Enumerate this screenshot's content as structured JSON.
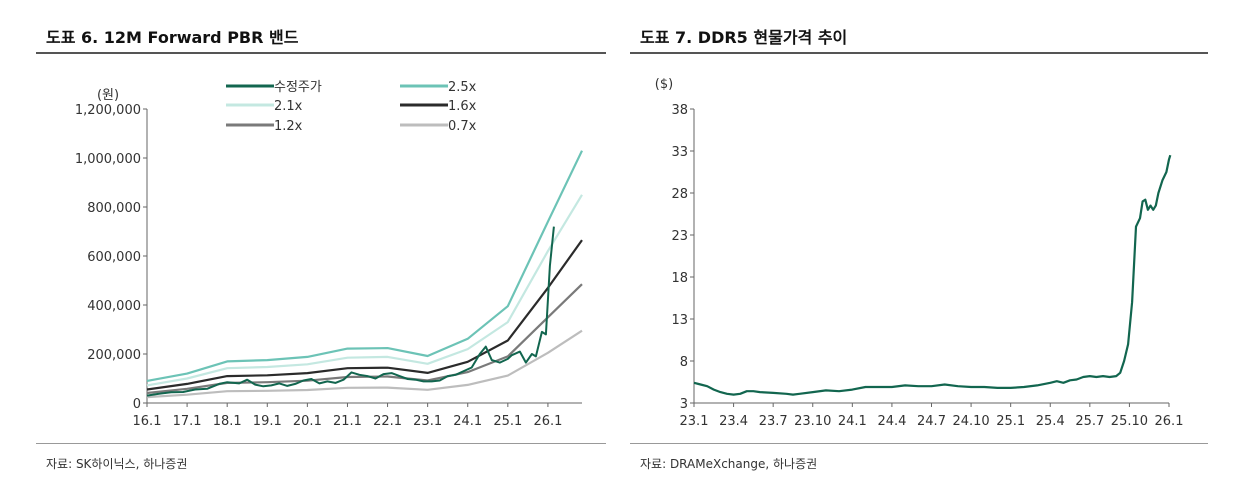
{
  "left": {
    "title": "도표 6. 12M Forward PBR 밴드",
    "source": "자료: SK하이닉스, 하나증권",
    "chart_data": {
      "type": "line",
      "unit_label": "(원)",
      "ylim": [
        0,
        1200000
      ],
      "yticks": [
        "0",
        "200,000",
        "400,000",
        "600,000",
        "800,000",
        "1,000,000",
        "1,200,000"
      ],
      "yticks_values": [
        0,
        200000,
        400000,
        600000,
        800000,
        1000000,
        1200000
      ],
      "xlim": [
        2016.0,
        2026.85
      ],
      "xticks": [
        "16.1",
        "17.1",
        "18.1",
        "19.1",
        "20.1",
        "21.1",
        "22.1",
        "23.1",
        "24.1",
        "25.1",
        "26.1"
      ],
      "xticks_values": [
        2016,
        2017,
        2018,
        2019,
        2020,
        2021,
        2022,
        2023,
        2024,
        2025,
        2026
      ],
      "legend_position": "top",
      "series": [
        {
          "name": "2.5x",
          "color": "#6cc3b6",
          "width": 2.2,
          "x": [
            2016.0,
            2017.0,
            2018.0,
            2019.0,
            2020.0,
            2021.0,
            2022.0,
            2023.0,
            2024.0,
            2025.0,
            2026.0,
            2026.85
          ],
          "y": [
            90000,
            120000,
            170000,
            175000,
            188000,
            222000,
            224000,
            192000,
            262000,
            395000,
            740000,
            1030000
          ]
        },
        {
          "name": "2.1x",
          "color": "#c4e8e1",
          "width": 2.2,
          "x": [
            2016.0,
            2017.0,
            2018.0,
            2019.0,
            2020.0,
            2021.0,
            2022.0,
            2023.0,
            2024.0,
            2025.0,
            2026.0,
            2026.85
          ],
          "y": [
            72000,
            100000,
            142000,
            147000,
            158000,
            185000,
            188000,
            160000,
            220000,
            330000,
            620000,
            850000
          ]
        },
        {
          "name": "1.6x",
          "color": "#2b2b2b",
          "width": 2.2,
          "x": [
            2016.0,
            2017.0,
            2018.0,
            2019.0,
            2020.0,
            2021.0,
            2022.0,
            2023.0,
            2024.0,
            2025.0,
            2026.0,
            2026.85
          ],
          "y": [
            55000,
            78000,
            110000,
            113000,
            122000,
            142000,
            144000,
            123000,
            168000,
            255000,
            470000,
            665000
          ]
        },
        {
          "name": "1.2x",
          "color": "#7a7a7a",
          "width": 2.2,
          "x": [
            2016.0,
            2017.0,
            2018.0,
            2019.0,
            2020.0,
            2021.0,
            2022.0,
            2023.0,
            2024.0,
            2025.0,
            2026.0,
            2026.85
          ],
          "y": [
            41000,
            58000,
            82000,
            85000,
            91000,
            106000,
            108000,
            92000,
            126000,
            190000,
            350000,
            485000
          ]
        },
        {
          "name": "0.7x",
          "color": "#bdbdbd",
          "width": 2.2,
          "x": [
            2016.0,
            2017.0,
            2018.0,
            2019.0,
            2020.0,
            2021.0,
            2022.0,
            2023.0,
            2024.0,
            2025.0,
            2026.0,
            2026.85
          ],
          "y": [
            24000,
            34000,
            48000,
            50000,
            53000,
            62000,
            63000,
            54000,
            74000,
            112000,
            205000,
            295000
          ]
        },
        {
          "name": "수정주가",
          "color": "#12664f",
          "width": 2.0,
          "x": [
            2016.0,
            2016.3,
            2016.6,
            2016.9,
            2017.2,
            2017.5,
            2017.8,
            2018.0,
            2018.3,
            2018.5,
            2018.7,
            2018.9,
            2019.1,
            2019.3,
            2019.5,
            2019.7,
            2019.9,
            2020.1,
            2020.3,
            2020.5,
            2020.7,
            2020.9,
            2021.1,
            2021.3,
            2021.5,
            2021.7,
            2021.9,
            2022.1,
            2022.3,
            2022.5,
            2022.7,
            2022.9,
            2023.1,
            2023.3,
            2023.5,
            2023.7,
            2023.9,
            2024.1,
            2024.3,
            2024.45,
            2024.6,
            2024.8,
            2025.0,
            2025.1,
            2025.3,
            2025.45,
            2025.6,
            2025.7,
            2025.85,
            2025.95,
            2026.05,
            2026.15
          ],
          "y": [
            30000,
            38000,
            44000,
            45000,
            55000,
            58000,
            78000,
            85000,
            80000,
            95000,
            75000,
            68000,
            72000,
            80000,
            70000,
            78000,
            92000,
            98000,
            80000,
            88000,
            82000,
            95000,
            125000,
            115000,
            110000,
            100000,
            118000,
            122000,
            110000,
            98000,
            95000,
            88000,
            88000,
            92000,
            110000,
            115000,
            130000,
            145000,
            200000,
            230000,
            175000,
            165000,
            180000,
            195000,
            210000,
            165000,
            200000,
            190000,
            290000,
            280000,
            560000,
            720000
          ]
        }
      ]
    }
  },
  "right": {
    "title": "도표 7. DDR5 현물가격 추이",
    "source": "자료: DRAMeXchange, 하나증권",
    "chart_data": {
      "type": "line",
      "unit_label": "($)",
      "ylim": [
        3,
        38
      ],
      "yticks": [
        "3",
        "8",
        "13",
        "18",
        "23",
        "28",
        "33",
        "38"
      ],
      "yticks_values": [
        3,
        8,
        13,
        18,
        23,
        28,
        33,
        38
      ],
      "xlim": [
        0,
        36
      ],
      "xticks": [
        "23.1",
        "23.4",
        "23.7",
        "23.10",
        "24.1",
        "24.4",
        "24.7",
        "24.10",
        "25.1",
        "25.4",
        "25.7",
        "25.10",
        "26.1"
      ],
      "xticks_values": [
        0,
        3,
        6,
        9,
        12,
        15,
        18,
        21,
        24,
        27,
        30,
        33,
        36
      ],
      "series": [
        {
          "name": "",
          "color": "#12664f",
          "width": 2.2,
          "x": [
            0,
            0.5,
            1,
            1.5,
            2,
            2.5,
            3,
            3.5,
            4,
            4.5,
            5,
            6,
            7,
            7.5,
            8,
            9,
            10,
            11,
            12,
            13,
            14,
            15,
            16,
            17,
            18,
            19,
            20,
            21,
            22,
            23,
            24,
            25,
            26,
            27,
            27.5,
            28,
            28.5,
            29,
            29.5,
            30,
            30.5,
            31,
            31.5,
            32,
            32.3,
            32.6,
            32.9,
            33.2,
            33.5,
            33.8,
            34.0,
            34.2,
            34.4,
            34.6,
            34.8,
            35.0,
            35.2,
            35.5,
            35.8,
            36.0,
            36.1
          ],
          "y": [
            5.4,
            5.2,
            5.0,
            4.6,
            4.3,
            4.1,
            4.0,
            4.1,
            4.4,
            4.4,
            4.3,
            4.2,
            4.1,
            4.0,
            4.1,
            4.3,
            4.5,
            4.4,
            4.6,
            4.9,
            4.9,
            4.9,
            5.1,
            5.0,
            5.0,
            5.2,
            5.0,
            4.9,
            4.9,
            4.8,
            4.8,
            4.9,
            5.1,
            5.4,
            5.6,
            5.4,
            5.7,
            5.8,
            6.1,
            6.2,
            6.1,
            6.2,
            6.1,
            6.2,
            6.6,
            8.0,
            10.0,
            15.0,
            24.0,
            25.0,
            27.0,
            27.2,
            26.0,
            26.5,
            26.0,
            26.5,
            28.0,
            29.5,
            30.5,
            32.0,
            32.5
          ]
        }
      ]
    }
  }
}
